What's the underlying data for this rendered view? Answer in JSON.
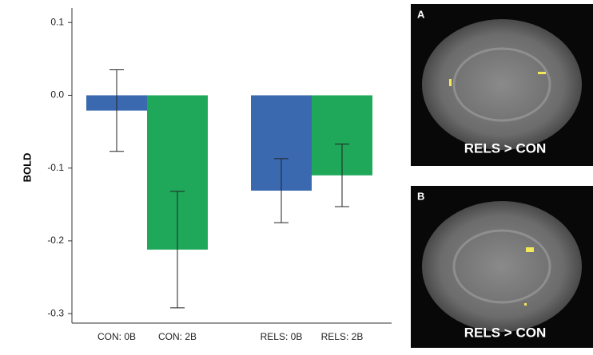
{
  "chart_data": {
    "type": "bar",
    "y_label": "BOLD",
    "categories": [
      "CON: 0B",
      "CON: 2B",
      "RELS: 0B",
      "RELS: 2B"
    ],
    "values": [
      -0.021,
      -0.212,
      -0.131,
      -0.11
    ],
    "errors": [
      0.056,
      0.08,
      0.044,
      0.043
    ],
    "colors": [
      "#3a69b0",
      "#1fa85a",
      "#3a69b0",
      "#1fa85a"
    ],
    "ylim": [
      -0.313,
      0.12
    ],
    "yticks": [
      0.1,
      {
        "value": 0,
        "label": "0.0"
      },
      -0.1,
      -0.2,
      -0.3
    ]
  },
  "panels": [
    {
      "label": "A",
      "caption": "RELS > CON"
    },
    {
      "label": "B",
      "caption": "RELS > CON"
    }
  ]
}
